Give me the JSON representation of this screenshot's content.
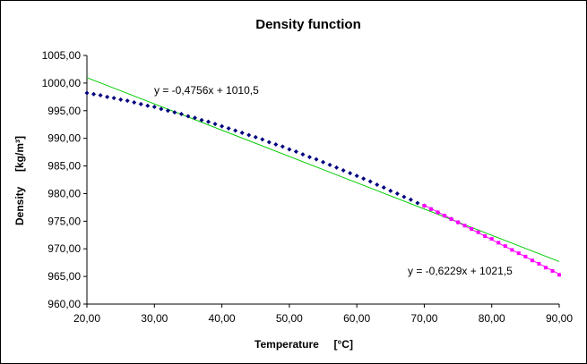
{
  "chart_data": {
    "type": "scatter",
    "title": "Density function",
    "xlabel": "Temperature     [°C]",
    "ylabel": "Density     [kg/m³]",
    "xlim": [
      20,
      90
    ],
    "ylim": [
      960,
      1005
    ],
    "x_ticks": [
      "20,00",
      "30,00",
      "40,00",
      "50,00",
      "60,00",
      "70,00",
      "80,00",
      "90,00"
    ],
    "y_ticks": [
      "960,00",
      "965,00",
      "970,00",
      "975,00",
      "980,00",
      "985,00",
      "990,00",
      "995,00",
      "1000,00",
      "1005,00"
    ],
    "grid": false,
    "series": [
      {
        "color": "#000080",
        "marker": "diamond",
        "x": [
          20,
          21,
          22,
          23,
          24,
          25,
          26,
          27,
          28,
          29,
          30,
          31,
          32,
          33,
          34,
          35,
          36,
          37,
          38,
          39,
          40,
          41,
          42,
          43,
          44,
          45,
          46,
          47,
          48,
          49,
          50,
          51,
          52,
          53,
          54,
          55,
          56,
          57,
          58,
          59,
          60,
          61,
          62,
          63,
          64,
          65,
          66,
          67,
          68,
          69,
          70,
          71,
          72,
          73,
          74,
          75
        ],
        "y": [
          998.2,
          998.0,
          997.8,
          997.5,
          997.3,
          997.0,
          996.8,
          996.5,
          996.2,
          995.9,
          995.7,
          995.3,
          995.0,
          994.7,
          994.4,
          994.0,
          993.7,
          993.3,
          993.0,
          992.6,
          992.2,
          991.8,
          991.4,
          991.0,
          990.6,
          990.2,
          989.8,
          989.3,
          988.9,
          988.5,
          988.0,
          987.6,
          987.1,
          986.6,
          986.2,
          985.7,
          985.2,
          984.7,
          984.2,
          983.7,
          983.2,
          982.7,
          982.2,
          981.6,
          981.1,
          980.5,
          980.0,
          979.4,
          978.9,
          978.3,
          977.8,
          977.2,
          976.6,
          976.0,
          975.4,
          974.8
        ]
      },
      {
        "color": "#ff00ff",
        "marker": "square",
        "x": [
          70,
          71,
          72,
          73,
          74,
          75,
          76,
          77,
          78,
          79,
          80,
          81,
          82,
          83,
          84,
          85,
          86,
          87,
          88,
          89,
          90
        ],
        "y": [
          977.8,
          977.2,
          976.6,
          976.0,
          975.4,
          974.8,
          974.2,
          973.6,
          973.0,
          972.3,
          971.8,
          971.1,
          970.5,
          969.8,
          969.2,
          968.6,
          967.9,
          967.3,
          966.6,
          966.0,
          965.3
        ]
      }
    ],
    "trendlines": [
      {
        "color": "#00cc00",
        "slope": -0.4756,
        "intercept": 1010.5,
        "x_range": [
          20,
          90
        ],
        "label": "y = -0,4756x + 1010,5"
      },
      {
        "color": "#ff00ff",
        "slope": -0.6229,
        "intercept": 1021.5,
        "x_range": [
          70,
          90
        ],
        "label": "y = -0,6229x + 1021,5"
      }
    ]
  }
}
